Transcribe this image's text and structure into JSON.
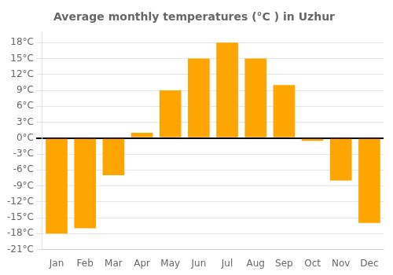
{
  "chart_data": {
    "type": "bar",
    "title": "Average monthly temperatures (°C ) in Uzhur",
    "categories": [
      "Jan",
      "Feb",
      "Mar",
      "Apr",
      "May",
      "Jun",
      "Jul",
      "Aug",
      "Sep",
      "Oct",
      "Nov",
      "Dec"
    ],
    "values": [
      -18,
      -17,
      -7,
      1,
      9,
      15,
      18,
      15,
      10,
      -0.5,
      -8,
      -16
    ],
    "color": "#FFA500",
    "ylim": [
      -21,
      20
    ],
    "yticks": [
      {
        "value": -21,
        "label": "-21°C"
      },
      {
        "value": -18,
        "label": "-18°C"
      },
      {
        "value": -15,
        "label": "-15°C"
      },
      {
        "value": -12,
        "label": "-12°C"
      },
      {
        "value": -9,
        "label": "-9°C"
      },
      {
        "value": -6,
        "label": "-6°C"
      },
      {
        "value": -3,
        "label": "-3°C"
      },
      {
        "value": 0,
        "label": "0°C"
      },
      {
        "value": 3,
        "label": "3°C"
      },
      {
        "value": 6,
        "label": "6°C"
      },
      {
        "value": 9,
        "label": "9°C"
      },
      {
        "value": 12,
        "label": "12°C"
      },
      {
        "value": 15,
        "label": "15°C"
      },
      {
        "value": 18,
        "label": "18°C"
      }
    ],
    "grid": true
  }
}
